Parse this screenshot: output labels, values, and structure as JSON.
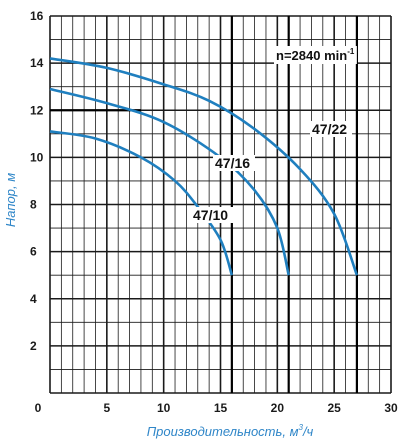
{
  "chart_data": {
    "type": "line",
    "xlabel": "Производительность, м",
    "xlabel_sup": "3",
    "xlabel_suffix": "/ч",
    "ylabel": "Напор, м",
    "xlim": [
      0,
      30
    ],
    "ylim": [
      0,
      16
    ],
    "x_ticks": [
      0,
      5,
      10,
      15,
      20,
      25,
      30
    ],
    "y_ticks": [
      2,
      4,
      6,
      8,
      10,
      12,
      14,
      16
    ],
    "speed_label": "n=2840 min",
    "speed_label_sup": "-1",
    "grid": true,
    "series": [
      {
        "name": "47/22",
        "x": [
          0,
          5,
          10,
          14,
          18,
          22,
          25,
          27
        ],
        "y": [
          14.2,
          13.8,
          13.1,
          12.4,
          11.2,
          9.5,
          7.6,
          5.0
        ]
      },
      {
        "name": "47/16",
        "x": [
          0,
          5,
          10,
          15,
          18,
          20,
          21
        ],
        "y": [
          12.9,
          12.3,
          11.5,
          10.0,
          8.6,
          7.0,
          5.0
        ]
      },
      {
        "name": "47/10",
        "x": [
          0,
          4,
          8,
          11,
          13,
          15,
          16
        ],
        "y": [
          11.1,
          10.8,
          10.0,
          9.0,
          7.9,
          6.5,
          5.0
        ]
      }
    ]
  },
  "colors": {
    "curve": "#1f7fbf",
    "grid": "#1a1a1a",
    "axis_label": "#2f86c8",
    "highlight_line": "#000000"
  }
}
